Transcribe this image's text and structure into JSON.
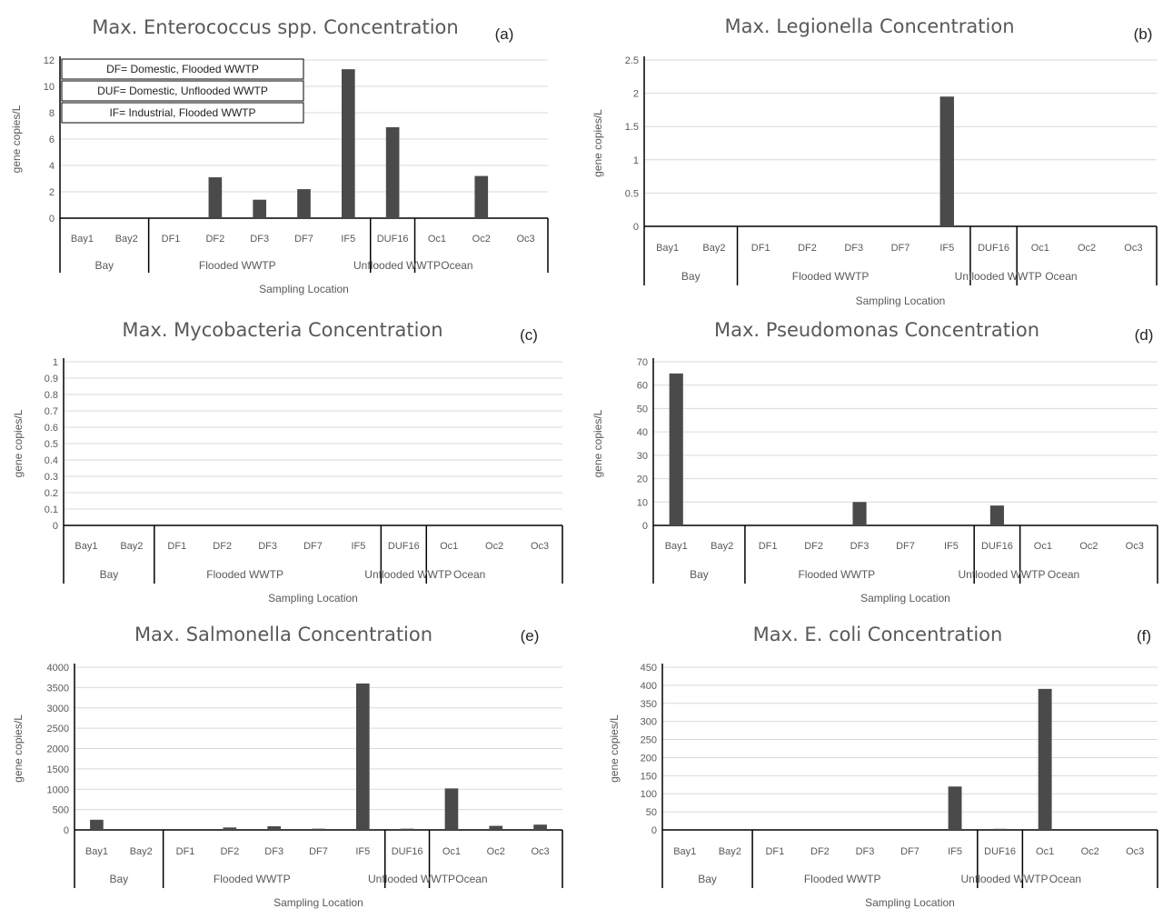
{
  "chart_data": [
    {
      "type": "bar",
      "panel_label": "(a)",
      "title": "Max. Enterococcus spp. Concentration",
      "ylabel": "gene copies/L",
      "xlabel": "Sampling Location",
      "categories": [
        "Bay1",
        "Bay2",
        "DF1",
        "DF2",
        "DF3",
        "DF7",
        "IF5",
        "DUF16",
        "Oc1",
        "Oc2",
        "Oc3"
      ],
      "groups": [
        "Bay",
        "Flooded WWTP",
        "Unflooded WWTP",
        "Ocean"
      ],
      "values": [
        0,
        0,
        0,
        3.1,
        1.4,
        2.2,
        11.3,
        6.9,
        0,
        3.2,
        0
      ],
      "ylim": [
        0,
        12
      ],
      "yticks": [
        "0",
        "2",
        "4",
        "6",
        "8",
        "10",
        "12"
      ],
      "legend_entries": [
        "DF= Domestic, Flooded WWTP",
        "DUF= Domestic, Unflooded WWTP",
        "IF= Industrial, Flooded WWTP"
      ]
    },
    {
      "type": "bar",
      "panel_label": "(b)",
      "title": "Max. Legionella Concentration",
      "ylabel": "gene copies/L",
      "xlabel": "Sampling Location",
      "categories": [
        "Bay1",
        "Bay2",
        "DF1",
        "DF2",
        "DF3",
        "DF7",
        "IF5",
        "DUF16",
        "Oc1",
        "Oc2",
        "Oc3"
      ],
      "groups": [
        "Bay",
        "Flooded WWTP",
        "Unflooded WWTP",
        "Ocean"
      ],
      "values": [
        0,
        0,
        0,
        0,
        0,
        0,
        1.95,
        0,
        0,
        0,
        0
      ],
      "ylim": [
        0,
        2.5
      ],
      "yticks": [
        "0",
        "0.5",
        "1",
        "1.5",
        "2",
        "2.5"
      ]
    },
    {
      "type": "bar",
      "panel_label": "(c)",
      "title": "Max. Mycobacteria Concentration",
      "ylabel": "gene copies/L",
      "xlabel": "Sampling Location",
      "categories": [
        "Bay1",
        "Bay2",
        "DF1",
        "DF2",
        "DF3",
        "DF7",
        "IF5",
        "DUF16",
        "Oc1",
        "Oc2",
        "Oc3"
      ],
      "groups": [
        "Bay",
        "Flooded WWTP",
        "Unflooded WWTP",
        "Ocean"
      ],
      "values": [
        0,
        0,
        0,
        0,
        0,
        0,
        0,
        0,
        0,
        0,
        0
      ],
      "ylim": [
        0,
        1
      ],
      "yticks": [
        "0",
        "0.1",
        "0.2",
        "0.3",
        "0.4",
        "0.5",
        "0.6",
        "0.7",
        "0.8",
        "0.9",
        "1"
      ]
    },
    {
      "type": "bar",
      "panel_label": "(d)",
      "title": "Max. Pseudomonas Concentration",
      "ylabel": "gene copies/L",
      "xlabel": "Sampling Location",
      "categories": [
        "Bay1",
        "Bay2",
        "DF1",
        "DF2",
        "DF3",
        "DF7",
        "IF5",
        "DUF16",
        "Oc1",
        "Oc2",
        "Oc3"
      ],
      "groups": [
        "Bay",
        "Flooded WWTP",
        "Unflooded WWTP",
        "Ocean"
      ],
      "values": [
        65,
        0,
        0,
        0,
        10,
        0,
        0,
        8.5,
        0,
        0,
        0
      ],
      "ylim": [
        0,
        70
      ],
      "yticks": [
        "0",
        "10",
        "20",
        "30",
        "40",
        "50",
        "60",
        "70"
      ]
    },
    {
      "type": "bar",
      "panel_label": "(e)",
      "title": "Max. Salmonella Concentration",
      "ylabel": "gene copies/L",
      "xlabel": "Sampling Location",
      "categories": [
        "Bay1",
        "Bay2",
        "DF1",
        "DF2",
        "DF3",
        "DF7",
        "IF5",
        "DUF16",
        "Oc1",
        "Oc2",
        "Oc3"
      ],
      "groups": [
        "Bay",
        "Flooded WWTP",
        "Unflooded WWTP",
        "Ocean"
      ],
      "values": [
        250,
        0,
        0,
        60,
        90,
        30,
        3600,
        30,
        1020,
        100,
        130
      ],
      "ylim": [
        0,
        4000
      ],
      "yticks": [
        "0",
        "500",
        "1000",
        "1500",
        "2000",
        "2500",
        "3000",
        "3500",
        "4000"
      ]
    },
    {
      "type": "bar",
      "panel_label": "(f)",
      "title": "Max. E. coli Concentration",
      "ylabel": "gene copies/L",
      "xlabel": "Sampling Location",
      "categories": [
        "Bay1",
        "Bay2",
        "DF1",
        "DF2",
        "DF3",
        "DF7",
        "IF5",
        "DUF16",
        "Oc1",
        "Oc2",
        "Oc3"
      ],
      "groups": [
        "Bay",
        "Flooded WWTP",
        "Unflooded WWTP",
        "Ocean"
      ],
      "values": [
        0,
        0,
        0,
        0,
        0,
        0,
        120,
        3,
        390,
        0,
        0
      ],
      "ylim": [
        0,
        450
      ],
      "yticks": [
        "0",
        "50",
        "100",
        "150",
        "200",
        "250",
        "300",
        "350",
        "400",
        "450"
      ]
    }
  ],
  "colors": {
    "bar": "#4a4a4a",
    "grid": "#d9d9d9",
    "axis": "#000000",
    "text": "#595959"
  }
}
